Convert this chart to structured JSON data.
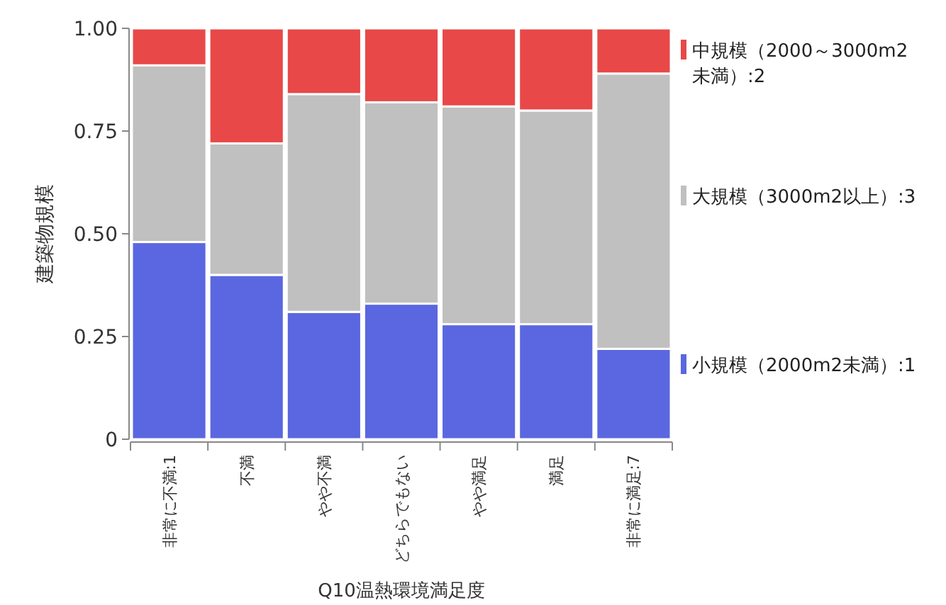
{
  "chart_data": {
    "type": "bar",
    "stacked": true,
    "xlabel": "Q10温熱環境満足度",
    "ylabel": "建築物規模",
    "categories": [
      "非常に不満:1",
      "不満",
      "やや不満",
      "どちらでもない",
      "やや満足",
      "満足",
      "非常に満足:7"
    ],
    "series": [
      {
        "name": "小規模（2000m2未満）:1",
        "color": "#5a67e0",
        "values": [
          0.48,
          0.4,
          0.31,
          0.33,
          0.28,
          0.28,
          0.22
        ]
      },
      {
        "name": "大規模（3000m2以上）:3",
        "color": "#c0c0c0",
        "values": [
          0.43,
          0.32,
          0.53,
          0.49,
          0.53,
          0.52,
          0.67
        ]
      },
      {
        "name": "中規模（2000～3000m2未満）:2",
        "color": "#e84848",
        "values": [
          0.09,
          0.28,
          0.16,
          0.18,
          0.19,
          0.2,
          0.11
        ]
      }
    ],
    "ylim": [
      0,
      1
    ],
    "yticks": [
      0,
      0.25,
      {
        "value": 0.5,
        "label": "0.50"
      },
      0.75,
      {
        "value": 1,
        "label": "1.00"
      }
    ],
    "grid": false,
    "legend": "right"
  }
}
